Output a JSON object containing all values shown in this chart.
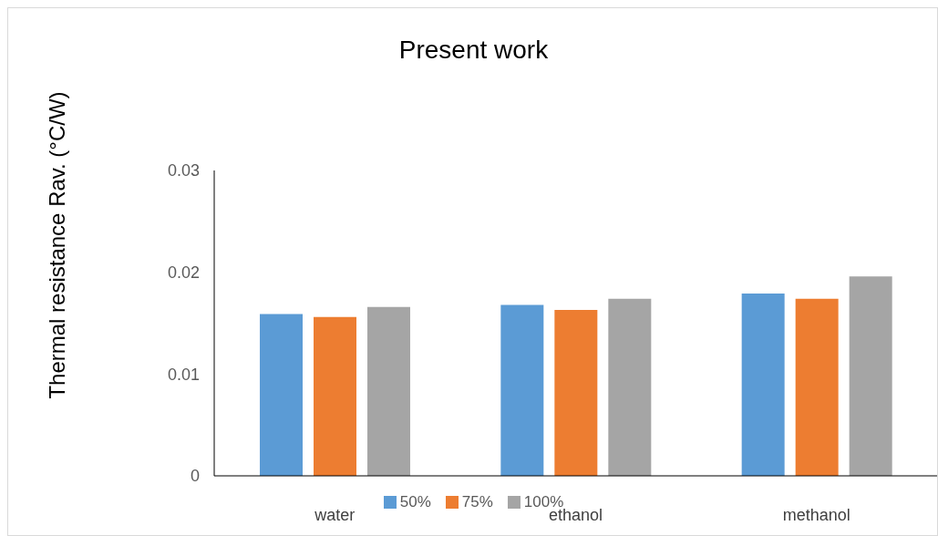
{
  "chart_data": {
    "type": "bar",
    "title": "Present work",
    "ylabel": "Thermal resistance Rav. (°C/W)",
    "categories": [
      "water",
      "ethanol",
      "methanol"
    ],
    "series": [
      {
        "name": "50%",
        "color": "#5b9bd5",
        "values": [
          0.0159,
          0.0168,
          0.0179
        ]
      },
      {
        "name": "75%",
        "color": "#ed7d31",
        "values": [
          0.0156,
          0.0163,
          0.0174
        ]
      },
      {
        "name": "100%",
        "color": "#a5a5a5",
        "values": [
          0.0166,
          0.0174,
          0.0196
        ]
      }
    ],
    "ylim": [
      0,
      0.03
    ],
    "yticks": [
      0,
      0.01,
      0.02,
      0.03
    ],
    "grid": false,
    "legend": "bottom"
  }
}
